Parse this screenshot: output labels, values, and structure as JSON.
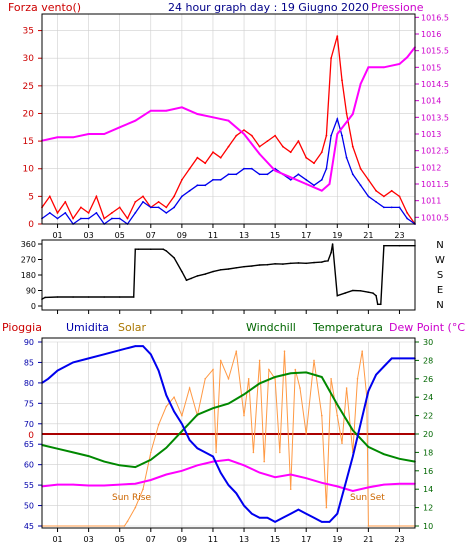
{
  "chart_data": [
    {
      "type": "line",
      "title": "24 hour graph day : 19 Giugno 2020",
      "left_label": "Forza vento()",
      "right_label": "Pressione",
      "x_ticks": [
        "01",
        "03",
        "05",
        "07",
        "09",
        "11",
        "13",
        "15",
        "17",
        "19",
        "21",
        "23"
      ],
      "x_range": [
        0,
        24
      ],
      "y_left": {
        "range": [
          0,
          38
        ],
        "ticks": [
          "0",
          "5",
          "10",
          "15",
          "20",
          "25",
          "30",
          "35"
        ],
        "values": [
          0,
          5,
          10,
          15,
          20,
          25,
          30,
          35
        ]
      },
      "y_right": {
        "range": [
          1010.3,
          1016.6
        ],
        "ticks": [
          "1010.5",
          "1011",
          "1011.5",
          "1012",
          "1012.5",
          "1013",
          "1013.5",
          "1014",
          "1014.5",
          "1015",
          "1015.5",
          "1016",
          "1016.5"
        ],
        "values": [
          1010.5,
          1011,
          1011.5,
          1012,
          1012.5,
          1013,
          1013.5,
          1014,
          1014.5,
          1015,
          1015.5,
          1016,
          1016.5
        ]
      },
      "series": [
        {
          "color": "#ff0000",
          "axis": "left",
          "x": [
            0,
            0.5,
            1,
            1.5,
            2,
            2.5,
            3,
            3.5,
            4,
            4.5,
            5,
            5.5,
            6,
            6.5,
            7,
            7.5,
            8,
            8.5,
            9,
            9.5,
            10,
            10.5,
            11,
            11.5,
            12,
            12.5,
            13,
            13.5,
            14,
            14.5,
            15,
            15.5,
            16,
            16.5,
            17,
            17.5,
            18,
            18.3,
            18.6,
            19,
            19.3,
            19.6,
            20,
            20.5,
            21,
            21.5,
            22,
            22.5,
            23,
            23.5,
            24
          ],
          "y": [
            3,
            5,
            2,
            4,
            1,
            3,
            2,
            5,
            1,
            2,
            3,
            1,
            4,
            5,
            3,
            4,
            3,
            5,
            8,
            10,
            12,
            11,
            13,
            12,
            14,
            16,
            17,
            16,
            14,
            15,
            16,
            14,
            13,
            15,
            12,
            11,
            13,
            16,
            30,
            34,
            26,
            20,
            14,
            10,
            8,
            6,
            5,
            6,
            5,
            2,
            0
          ]
        },
        {
          "color": "#0000ee",
          "axis": "left",
          "x": [
            0,
            0.5,
            1,
            1.5,
            2,
            2.5,
            3,
            3.5,
            4,
            4.5,
            5,
            5.5,
            6,
            6.5,
            7,
            7.5,
            8,
            8.5,
            9,
            9.5,
            10,
            10.5,
            11,
            11.5,
            12,
            12.5,
            13,
            13.5,
            14,
            14.5,
            15,
            15.5,
            16,
            16.5,
            17,
            17.5,
            18,
            18.3,
            18.6,
            19,
            19.3,
            19.6,
            20,
            20.5,
            21,
            21.5,
            22,
            22.5,
            23,
            23.5,
            24
          ],
          "y": [
            1,
            2,
            1,
            2,
            0,
            1,
            1,
            2,
            0,
            1,
            1,
            0,
            2,
            4,
            3,
            3,
            2,
            3,
            5,
            6,
            7,
            7,
            8,
            8,
            9,
            9,
            10,
            10,
            9,
            9,
            10,
            9,
            8,
            9,
            8,
            7,
            8,
            10,
            16,
            19,
            16,
            12,
            9,
            7,
            5,
            4,
            3,
            3,
            3,
            1,
            0
          ]
        },
        {
          "color": "#ff00ff",
          "axis": "right",
          "x": [
            0,
            1,
            2,
            3,
            4,
            5,
            6,
            7,
            8,
            9,
            10,
            11,
            12,
            13,
            14,
            15,
            16,
            17,
            18,
            18.5,
            19,
            19.5,
            20,
            20.5,
            21,
            22,
            23,
            23.5,
            24
          ],
          "y": [
            1012.8,
            1012.9,
            1012.9,
            1013.0,
            1013.0,
            1013.2,
            1013.4,
            1013.7,
            1013.7,
            1013.8,
            1013.6,
            1013.5,
            1013.4,
            1013.0,
            1012.4,
            1011.9,
            1011.7,
            1011.5,
            1011.3,
            1011.5,
            1013.0,
            1013.3,
            1013.6,
            1014.5,
            1015.0,
            1015.0,
            1015.1,
            1015.3,
            1015.6
          ]
        }
      ]
    },
    {
      "type": "line",
      "title": "",
      "x_range": [
        0,
        24
      ],
      "y": {
        "range": [
          0,
          360
        ],
        "ticks": [
          "0",
          "90",
          "180",
          "270",
          "360"
        ],
        "values": [
          0,
          90,
          180,
          270,
          360
        ]
      },
      "right_labels": [
        "N",
        "W",
        "S",
        "E",
        "N"
      ],
      "series": [
        {
          "color": "#000000",
          "x": [
            0,
            0.2,
            1,
            2,
            3,
            4,
            5,
            5.9,
            6.0,
            6.2,
            7,
            7.8,
            8.0,
            8.5,
            9,
            9.3,
            9.6,
            10,
            10.5,
            11,
            11.5,
            12,
            12.5,
            13,
            13.5,
            14,
            14.5,
            15,
            15.5,
            16,
            16.5,
            17,
            17.5,
            18,
            18.2,
            18.4,
            18.6,
            18.7,
            19,
            19.5,
            20,
            20.5,
            21,
            21.3,
            21.5,
            21.6,
            21.8,
            22,
            23,
            24
          ],
          "y": [
            40,
            50,
            52,
            52,
            52,
            52,
            52,
            52,
            330,
            330,
            330,
            330,
            320,
            280,
            200,
            150,
            160,
            175,
            185,
            200,
            210,
            215,
            222,
            228,
            232,
            238,
            240,
            245,
            243,
            248,
            250,
            248,
            252,
            255,
            260,
            262,
            310,
            360,
            60,
            75,
            90,
            88,
            80,
            75,
            60,
            10,
            10,
            350,
            350,
            350
          ]
        }
      ]
    },
    {
      "type": "line",
      "title": "",
      "labels": {
        "rain": "Pioggia",
        "humidity": "Umidita",
        "solar": "Solar",
        "windchill": "Windchill",
        "temperature": "Temperatura",
        "dewpoint": "Dew Point (°C)"
      },
      "annotations": {
        "sunrise": "Sun Rise",
        "sunset": "Sun Set"
      },
      "x_range": [
        0,
        24
      ],
      "y_left": {
        "range": [
          45,
          90
        ],
        "ticks": [
          "45",
          "50",
          "55",
          "60",
          "65",
          "70",
          "75",
          "80",
          "85",
          "90"
        ],
        "values": [
          45,
          50,
          55,
          60,
          65,
          70,
          75,
          80,
          85,
          90
        ]
      },
      "y_right": {
        "range": [
          10,
          30
        ],
        "ticks": [
          "10",
          "12",
          "14",
          "16",
          "18",
          "20",
          "22",
          "24",
          "26",
          "28",
          "30"
        ],
        "values": [
          10,
          12,
          14,
          16,
          18,
          20,
          22,
          24,
          26,
          28,
          30
        ]
      },
      "rain_level": {
        "label": "0",
        "value": 0
      },
      "series": [
        {
          "key": "humidity",
          "color": "#0000ee",
          "axis": "left",
          "x": [
            0,
            0.4,
            1,
            2,
            3,
            4,
            5,
            6,
            6.5,
            7,
            7.5,
            8,
            8.5,
            9,
            9.5,
            10,
            10.5,
            11,
            11.5,
            12,
            12.5,
            13,
            13.5,
            14,
            14.5,
            15,
            15.5,
            16,
            16.5,
            17,
            17.5,
            18,
            18.5,
            19,
            19.5,
            20,
            20.5,
            21,
            21.5,
            22,
            22.5,
            23,
            24
          ],
          "y": [
            80,
            81,
            83,
            85,
            86,
            87,
            88,
            89,
            89,
            87,
            83,
            77,
            73,
            70,
            66,
            64,
            63,
            62,
            58,
            55,
            53,
            50,
            48,
            47,
            47,
            46,
            47,
            48,
            49,
            48,
            47,
            46,
            46,
            48,
            55,
            62,
            70,
            78,
            82,
            84,
            86,
            86,
            86
          ]
        },
        {
          "key": "temperature",
          "color": "#008800",
          "axis": "right",
          "x": [
            0,
            1,
            2,
            3,
            4,
            5,
            6,
            7,
            8,
            9,
            10,
            11,
            12,
            13,
            14,
            15,
            16,
            17,
            18,
            19,
            20,
            21,
            22,
            23,
            24
          ],
          "y": [
            18.8,
            18.4,
            18.0,
            17.6,
            17.0,
            16.6,
            16.4,
            17.2,
            18.5,
            20.3,
            22.1,
            22.8,
            23.3,
            24.3,
            25.5,
            26.2,
            26.6,
            26.7,
            26.2,
            23.2,
            20.4,
            18.6,
            17.8,
            17.3,
            17.0
          ]
        },
        {
          "key": "dewpoint",
          "color": "#ff00ff",
          "axis": "right",
          "x": [
            0,
            1,
            2,
            3,
            4,
            5,
            6,
            7,
            8,
            9,
            10,
            11,
            12,
            13,
            14,
            15,
            16,
            17,
            18,
            19,
            20,
            21,
            22,
            23,
            24
          ],
          "y": [
            14.3,
            14.5,
            14.5,
            14.4,
            14.4,
            14.5,
            14.6,
            15.0,
            15.6,
            16.0,
            16.6,
            17.0,
            17.2,
            16.6,
            15.8,
            15.3,
            15.6,
            15.2,
            14.7,
            14.3,
            13.8,
            14.2,
            14.5,
            14.6,
            14.6
          ]
        },
        {
          "key": "solar",
          "color": "#ff9944",
          "axis": "right",
          "x": [
            0,
            5.3,
            5.5,
            6,
            6.5,
            7,
            7.5,
            8,
            8.5,
            9,
            9.5,
            10,
            10.5,
            11,
            11.2,
            11.5,
            12,
            12.5,
            13,
            13.3,
            13.6,
            14,
            14.3,
            14.6,
            15,
            15.3,
            15.6,
            16,
            16.3,
            16.6,
            17,
            17.5,
            18,
            18.3,
            18.6,
            19,
            19.3,
            19.6,
            20,
            20.3,
            20.6,
            20.9,
            21,
            24
          ],
          "y": [
            10,
            10,
            10.5,
            12,
            14,
            18,
            21,
            23,
            24,
            22,
            25,
            22,
            26,
            27,
            18,
            28,
            26,
            29,
            22,
            26,
            18,
            28,
            17,
            27,
            26,
            18,
            29,
            14,
            27,
            25,
            20,
            28,
            22,
            12,
            26,
            22,
            19,
            25,
            18,
            26,
            29,
            24,
            10,
            10
          ]
        }
      ]
    }
  ]
}
